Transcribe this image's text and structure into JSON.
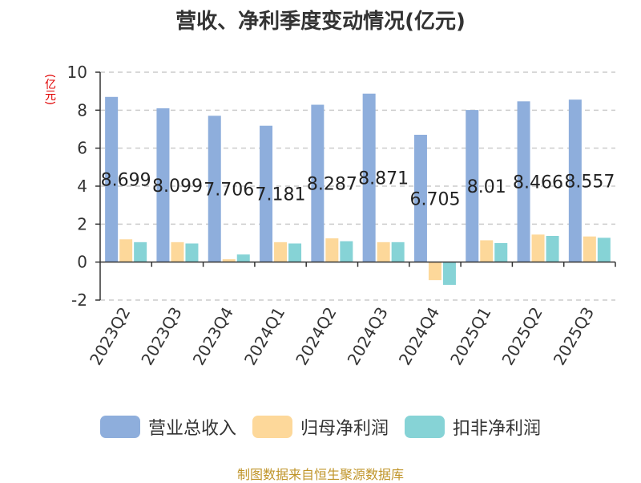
{
  "chart_data": {
    "type": "bar",
    "title": "营收、净利季度变动情况(亿元)",
    "unit_label": "(亿元)",
    "categories": [
      "2023Q2",
      "2023Q3",
      "2023Q4",
      "2024Q1",
      "2024Q2",
      "2024Q3",
      "2024Q4",
      "2025Q1",
      "2025Q2",
      "2025Q3"
    ],
    "series": [
      {
        "name": "营业总收入",
        "color": "#8eaedc",
        "values": [
          8.699,
          8.099,
          7.706,
          7.181,
          8.287,
          8.871,
          6.705,
          8.01,
          8.466,
          8.557
        ],
        "labels": [
          "8.699",
          "8.099",
          "7.706",
          "7.181",
          "8.287",
          "8.871",
          "6.705",
          "8.01",
          "8.466",
          "8.557"
        ]
      },
      {
        "name": "归母净利润",
        "color": "#fdd89a",
        "values": [
          1.2,
          1.05,
          0.15,
          1.05,
          1.25,
          1.05,
          -0.95,
          1.15,
          1.45,
          1.35
        ]
      },
      {
        "name": "扣非净利润",
        "color": "#86d3d6",
        "values": [
          1.05,
          0.98,
          0.4,
          0.98,
          1.1,
          1.05,
          -1.2,
          1.0,
          1.38,
          1.28
        ]
      }
    ],
    "ylim": [
      -2,
      10
    ],
    "yticks": [
      "-2",
      "0",
      "2",
      "4",
      "6",
      "8",
      "10"
    ],
    "grid": true,
    "legend_position": "bottom"
  },
  "source_note": "制图数据来自恒生聚源数据库"
}
